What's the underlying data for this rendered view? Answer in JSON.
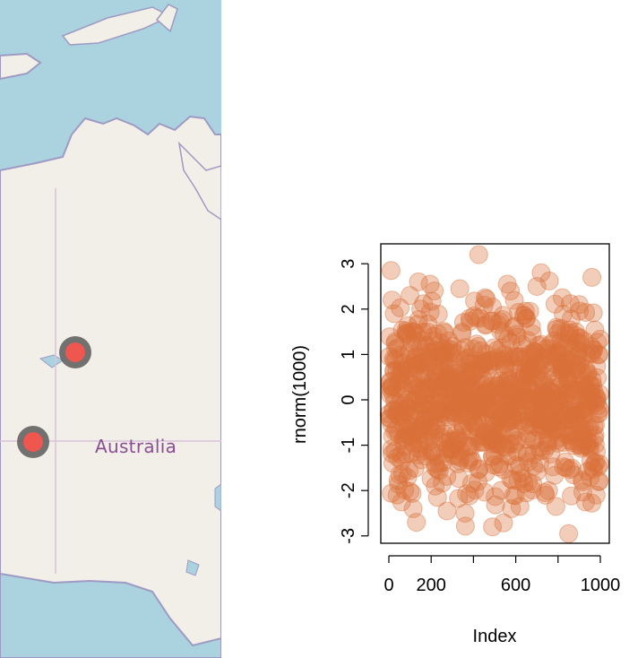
{
  "map": {
    "region_label": "Australia",
    "colors": {
      "water": "#aad3df",
      "land": "#f2efe9",
      "border": "#9e9ac4",
      "marker_fill": "#ef5650",
      "marker_ring": "#5a5a5a"
    },
    "markers": [
      {
        "name": "marker-1",
        "icon": "map-marker"
      },
      {
        "name": "marker-2",
        "icon": "map-marker"
      }
    ]
  },
  "chart_data": {
    "type": "scatter",
    "xlabel": "Index",
    "ylabel": "rnorm(1000)",
    "xlim": [
      0,
      1000
    ],
    "ylim": [
      -3,
      3.2
    ],
    "x_ticks": [
      0,
      200,
      600,
      1000
    ],
    "y_ticks": [
      -3,
      -2,
      -1,
      0,
      1,
      2,
      3
    ],
    "n_points": 1000,
    "point_color": "#d9703a",
    "point_alpha": 0.35,
    "highlight_points": [
      {
        "x": 10,
        "y": 2.85
      },
      {
        "x": 15,
        "y": 2.2
      },
      {
        "x": 25,
        "y": 1.9
      },
      {
        "x": 60,
        "y": -2.25
      },
      {
        "x": 100,
        "y": 2.3
      },
      {
        "x": 115,
        "y": -2.4
      },
      {
        "x": 130,
        "y": -2.7
      },
      {
        "x": 140,
        "y": 2.6
      },
      {
        "x": 195,
        "y": 2.55
      },
      {
        "x": 215,
        "y": 2.4
      },
      {
        "x": 230,
        "y": -2.15
      },
      {
        "x": 275,
        "y": -2.45
      },
      {
        "x": 335,
        "y": 2.45
      },
      {
        "x": 360,
        "y": -2.5
      },
      {
        "x": 425,
        "y": 3.2
      },
      {
        "x": 455,
        "y": 2.25
      },
      {
        "x": 490,
        "y": -2.8
      },
      {
        "x": 560,
        "y": 2.55
      },
      {
        "x": 575,
        "y": 2.4
      },
      {
        "x": 580,
        "y": -2.4
      },
      {
        "x": 620,
        "y": -2.35
      },
      {
        "x": 700,
        "y": 2.5
      },
      {
        "x": 720,
        "y": 2.8
      },
      {
        "x": 755,
        "y": -2.0
      },
      {
        "x": 790,
        "y": -2.35
      },
      {
        "x": 820,
        "y": 2.25
      },
      {
        "x": 850,
        "y": -2.95
      },
      {
        "x": 900,
        "y": 2.1
      },
      {
        "x": 930,
        "y": -2.25
      },
      {
        "x": 960,
        "y": 2.7
      },
      {
        "x": 980,
        "y": -2.1
      }
    ]
  }
}
